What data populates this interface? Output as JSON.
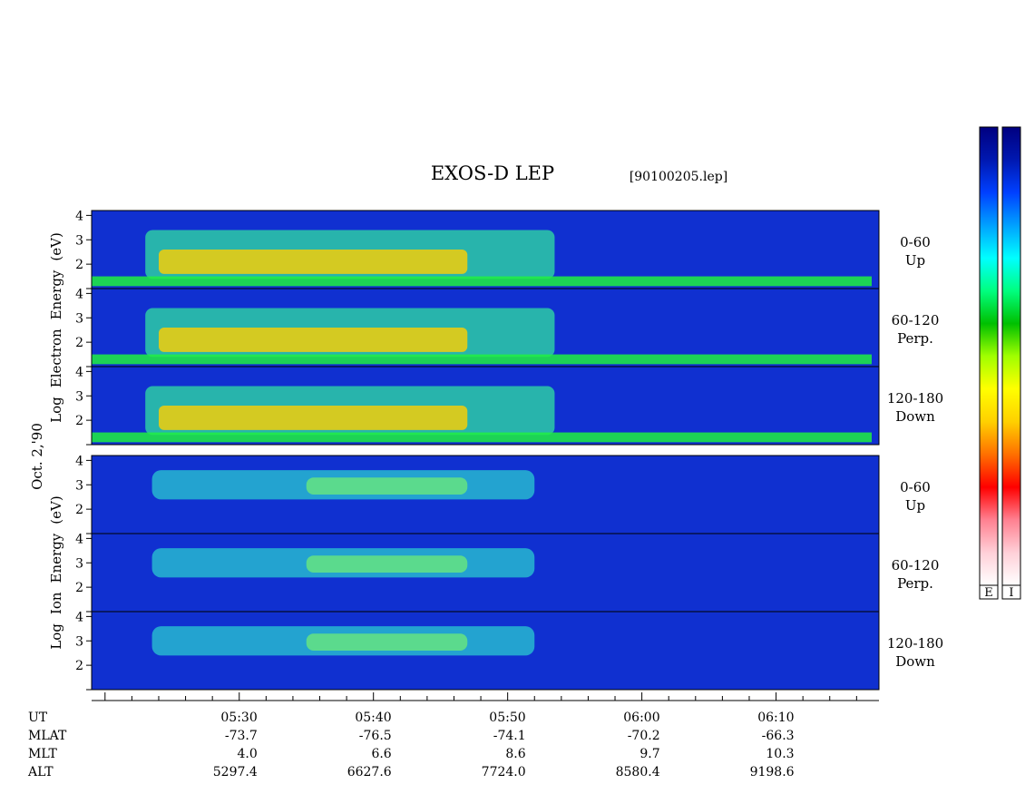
{
  "title": "EXOS-D LEP",
  "file_label": "[90100205.lep]",
  "date_label": "Oct. 2,'90",
  "groups": [
    {
      "id": "electron",
      "ylabel_words": [
        "Log",
        "Electron",
        "Energy",
        "(eV)"
      ],
      "panels": [
        {
          "pitch_range": "0-60",
          "direction": "Up"
        },
        {
          "pitch_range": "60-120",
          "direction": "Perp."
        },
        {
          "pitch_range": "120-180",
          "direction": "Down"
        }
      ]
    },
    {
      "id": "ion",
      "ylabel_words": [
        "Log",
        "Ion",
        "Energy",
        "(eV)"
      ],
      "panels": [
        {
          "pitch_range": "0-60",
          "direction": "Up"
        },
        {
          "pitch_range": "60-120",
          "direction": "Perp."
        },
        {
          "pitch_range": "120-180",
          "direction": "Down"
        }
      ]
    }
  ],
  "colorbars": {
    "labels": [
      "E",
      "I"
    ]
  },
  "colors": {
    "colormap": [
      "#ffffff",
      "#ffd0d8",
      "#ff8090",
      "#ff0000",
      "#ff7000",
      "#ffd000",
      "#ffff00",
      "#a0ff00",
      "#00c000",
      "#00ff80",
      "#00ffff",
      "#00a0ff",
      "#0040ff",
      "#0018b0",
      "#000080"
    ]
  },
  "chart_data": {
    "type": "heatmap",
    "x_unit": "UT",
    "yaxis_ticks": [
      "1",
      "2",
      "3",
      "4"
    ],
    "ylim": [
      1,
      4.2
    ],
    "xlim": [
      "05:19:00",
      "06:17:40"
    ],
    "time_ticks": [
      "05:30",
      "05:40",
      "05:50",
      "06:00",
      "06:10"
    ],
    "ephemeris": {
      "rows": [
        {
          "label": "UT",
          "values": [
            "05:30",
            "05:40",
            "05:50",
            "06:00",
            "06:10"
          ]
        },
        {
          "label": "MLAT",
          "values": [
            "-73.7",
            "-76.5",
            "-74.1",
            "-70.2",
            "-66.3"
          ]
        },
        {
          "label": "MLT",
          "values": [
            "4.0",
            "6.6",
            "8.6",
            "9.7",
            "10.3"
          ]
        },
        {
          "label": "ALT",
          "values": [
            "5297.4",
            "6627.6",
            "7724.0",
            "8580.4",
            "9198.6"
          ]
        }
      ]
    }
  }
}
